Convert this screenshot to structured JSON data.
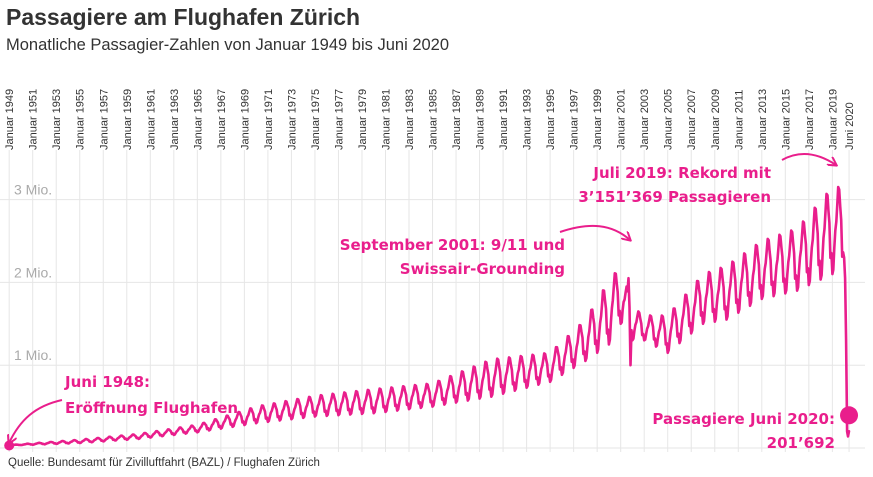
{
  "header": {
    "title": "Passagiere am Flughafen Zürich",
    "subtitle": "Monatliche Passagier-Zahlen von Januar 1949 bis Juni 2020"
  },
  "footer": {
    "source": "Quelle: Bundesamt für Zivilluftfahrt (BAZL) / Flughafen Zürich"
  },
  "chart_data": {
    "type": "line",
    "x_tick_labels": [
      "Januar 1949",
      "Januar 1951",
      "Januar 1953",
      "Januar 1955",
      "Januar 1957",
      "Januar 1959",
      "Januar 1961",
      "Januar 1963",
      "Januar 1965",
      "Januar 1967",
      "Januar 1969",
      "Januar 1971",
      "Januar 1973",
      "Januar 1975",
      "Januar 1977",
      "Januar 1979",
      "Januar 1981",
      "Januar 1983",
      "Januar 1985",
      "Januar 1987",
      "Januar 1989",
      "Januar 1991",
      "Januar 1993",
      "Januar 1995",
      "Januar 1997",
      "Januar 1999",
      "Januar 2001",
      "Januar 2003",
      "Januar 2005",
      "Januar 2007",
      "Januar 2009",
      "Januar 2011",
      "Januar 2013",
      "Januar 2015",
      "Januar 2017",
      "Januar 2019",
      "Juni 2020"
    ],
    "y_tick_labels": [
      "1 Mio.",
      "2 Mio.",
      "3 Mio."
    ],
    "y_ticks": [
      1000000,
      2000000,
      3000000
    ],
    "ylim": [
      0,
      3200000
    ],
    "xlim": [
      1948.9,
      2020.5
    ],
    "grid": "vertical and horizontal",
    "legend": "none",
    "colors": {
      "line": "#e91e8c",
      "grid": "#e6e6e6",
      "text": "#333333",
      "ytick": "#aaaaaa"
    },
    "yearly_levels": {
      "years": [
        1949,
        1955,
        1960,
        1965,
        1970,
        1975,
        1980,
        1985,
        1990,
        1995,
        1998,
        2000,
        2001,
        2002,
        2003,
        2005,
        2008,
        2010,
        2013,
        2016,
        2019
      ],
      "min": [
        30000,
        60000,
        110000,
        190000,
        300000,
        380000,
        420000,
        500000,
        620000,
        800000,
        1050000,
        1250000,
        1500000,
        1300000,
        1300000,
        1150000,
        1500000,
        1550000,
        1800000,
        1900000,
        2100000
      ],
      "max": [
        35000,
        100000,
        170000,
        280000,
        500000,
        630000,
        710000,
        780000,
        1070000,
        1150000,
        1550000,
        2020000,
        2200000,
        1700000,
        1600000,
        1600000,
        2100000,
        2200000,
        2500000,
        2650000,
        3151369
      ]
    },
    "series": [
      {
        "points": [
          {
            "x": "Januar 1949",
            "y": 30000
          },
          {
            "x": "2002",
            "y": 1000000
          },
          {
            "x": "Juli 2019",
            "y": 3151369
          },
          {
            "x": "Januar 2020",
            "y": 2300000
          },
          {
            "x": "Juni 2020",
            "y": 201692
          }
        ]
      }
    ],
    "annotations": [
      {
        "lines": [
          "Juni 1948:",
          "Eröffnung Flughafen"
        ]
      },
      {
        "lines": [
          "September 2001: 9/11 und",
          "Swissair-Grounding"
        ]
      },
      {
        "lines": [
          "Juli 2019: Rekord mit",
          "3’151’369 Passagieren"
        ]
      },
      {
        "lines": [
          "Passagiere Juni 2020:",
          "201’692"
        ]
      }
    ]
  }
}
